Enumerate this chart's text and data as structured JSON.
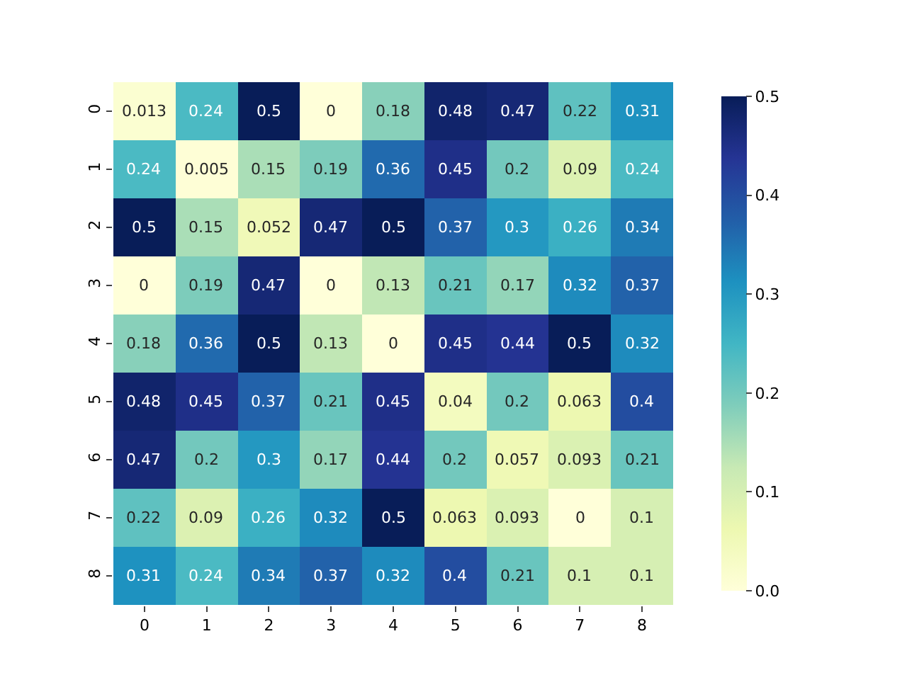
{
  "chart_data": {
    "type": "heatmap",
    "categories": [
      "0",
      "1",
      "2",
      "3",
      "4",
      "5",
      "6",
      "7",
      "8"
    ],
    "y_categories": [
      "0",
      "1",
      "2",
      "3",
      "4",
      "5",
      "6",
      "7",
      "8"
    ],
    "cells": [
      [
        0.013,
        0.24,
        0.5,
        0,
        0.18,
        0.48,
        0.47,
        0.22,
        0.31
      ],
      [
        0.24,
        0.005,
        0.15,
        0.19,
        0.36,
        0.45,
        0.2,
        0.09,
        0.24
      ],
      [
        0.5,
        0.15,
        0.052,
        0.47,
        0.5,
        0.37,
        0.3,
        0.26,
        0.34
      ],
      [
        0,
        0.19,
        0.47,
        0,
        0.13,
        0.21,
        0.17,
        0.32,
        0.37
      ],
      [
        0.18,
        0.36,
        0.5,
        0.13,
        0,
        0.45,
        0.44,
        0.5,
        0.32
      ],
      [
        0.48,
        0.45,
        0.37,
        0.21,
        0.45,
        0.04,
        0.2,
        0.063,
        0.4
      ],
      [
        0.47,
        0.2,
        0.3,
        0.17,
        0.44,
        0.2,
        0.057,
        0.093,
        0.21
      ],
      [
        0.22,
        0.09,
        0.26,
        0.32,
        0.5,
        0.063,
        0.093,
        0,
        0.1
      ],
      [
        0.31,
        0.24,
        0.34,
        0.37,
        0.32,
        0.4,
        0.21,
        0.1,
        0.1
      ]
    ],
    "clim": [
      0,
      0.5
    ],
    "cticks": [
      {
        "value": 0,
        "label": "0.0"
      },
      {
        "value": 0.1,
        "label": "0.1"
      },
      {
        "value": 0.2,
        "label": "0.2"
      },
      {
        "value": 0.3,
        "label": "0.3"
      },
      {
        "value": 0.4,
        "label": "0.4"
      },
      {
        "value": 0.5,
        "label": "0.5"
      }
    ],
    "data_labels": true
  }
}
